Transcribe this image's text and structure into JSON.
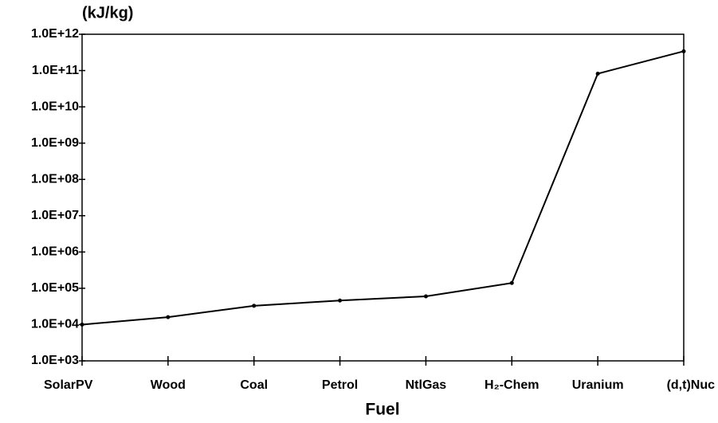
{
  "chart_data": {
    "type": "line",
    "ylabel": "(kJ/kg)",
    "xlabel": "Fuel",
    "categories": [
      "SolarPV",
      "Wood",
      "Coal",
      "Petrol",
      "NtlGas",
      "H₂-Chem",
      "Uranium",
      "(d,t)Nuc"
    ],
    "values": [
      10000,
      16000,
      33000,
      46000,
      60000,
      140000,
      82000000000,
      340000000000
    ],
    "color": "#000000",
    "log_y": true,
    "ylim": [
      1000,
      1000000000000
    ],
    "yticks": [
      {
        "value": 1000,
        "label": "1.0E+03"
      },
      {
        "value": 10000,
        "label": "1.0E+04"
      },
      {
        "value": 100000,
        "label": "1.0E+05"
      },
      {
        "value": 1000000,
        "label": "1.0E+06"
      },
      {
        "value": 10000000,
        "label": "1.0E+07"
      },
      {
        "value": 100000000,
        "label": "1.0E+08"
      },
      {
        "value": 1000000000,
        "label": "1.0E+09"
      },
      {
        "value": 10000000000,
        "label": "1.0E+10"
      },
      {
        "value": 100000000000,
        "label": "1.0E+11"
      },
      {
        "value": 1000000000000,
        "label": "1.0E+12"
      }
    ]
  }
}
